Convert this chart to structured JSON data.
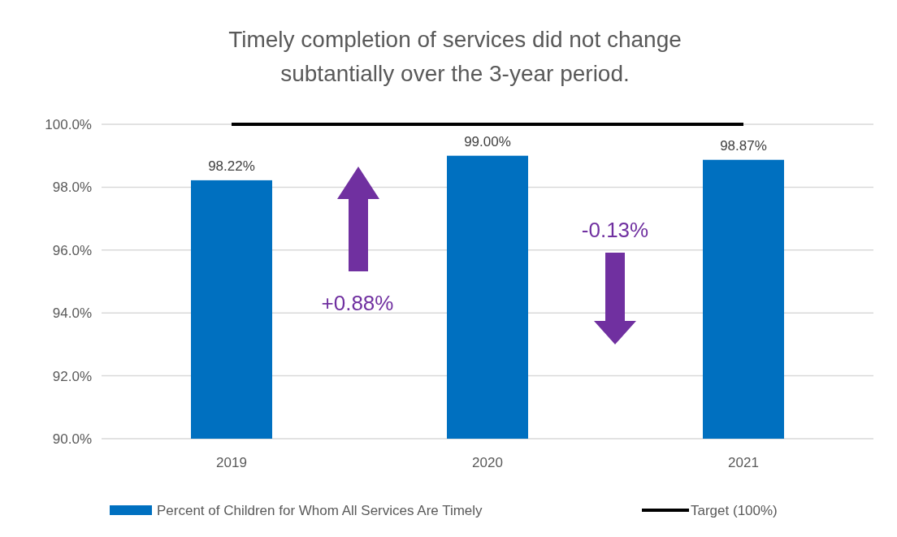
{
  "chart_data": {
    "type": "bar",
    "title": "Timely completion of services did not change\nsubtantially over the 3-year period.",
    "categories": [
      "2019",
      "2020",
      "2021"
    ],
    "series": [
      {
        "name": "Percent of Children for Whom All Services Are Timely",
        "color": "#0070c0",
        "values": [
          98.22,
          99.0,
          98.87
        ],
        "value_labels": [
          "98.22%",
          "99.00%",
          "98.87%"
        ]
      },
      {
        "name": "Target (100%)",
        "type": "line",
        "color": "#000000",
        "values": [
          100,
          100,
          100
        ]
      }
    ],
    "ylim": [
      90,
      100
    ],
    "yticks": [
      {
        "value": 90,
        "label": "90.0%"
      },
      {
        "value": 92,
        "label": "92.0%"
      },
      {
        "value": 94,
        "label": "94.0%"
      },
      {
        "value": 96,
        "label": "96.0%"
      },
      {
        "value": 98,
        "label": "98.0%"
      },
      {
        "value": 100,
        "label": "100.0%"
      }
    ],
    "grid": "y",
    "legend": "bottom",
    "annotations": [
      "+0.88%",
      "-0.13%"
    ]
  }
}
